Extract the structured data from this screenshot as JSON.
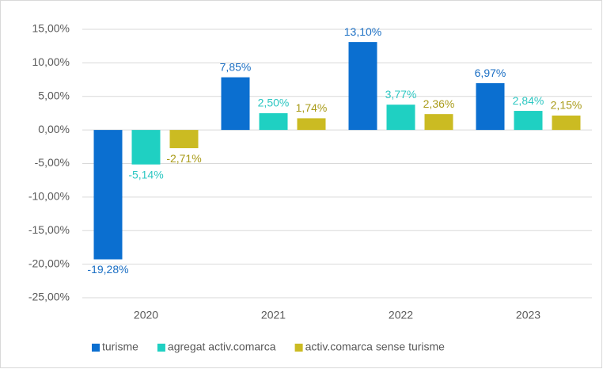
{
  "chart_data": {
    "type": "bar",
    "categories": [
      "2020",
      "2021",
      "2022",
      "2023"
    ],
    "series": [
      {
        "name": "turisme",
        "color": "#0b6fd0",
        "label_color": "#1b6fc4",
        "values": [
          -19.28,
          7.85,
          13.1,
          6.97
        ],
        "value_labels": [
          "-19,28%",
          "7,85%",
          "13,10%",
          "6,97%"
        ]
      },
      {
        "name": "agregat activ.comarca",
        "color": "#1fd0c2",
        "label_color": "#2cc7c2",
        "values": [
          -5.14,
          2.5,
          3.77,
          2.84
        ],
        "value_labels": [
          "-5,14%",
          "2,50%",
          "3,77%",
          "2,84%"
        ]
      },
      {
        "name": "activ.comarca sense turisme",
        "color": "#cbbb22",
        "label_color": "#a99b18",
        "values": [
          -2.71,
          1.74,
          2.36,
          2.15
        ],
        "value_labels": [
          "-2,71%",
          "1,74%",
          "2,36%",
          "2,15%"
        ]
      }
    ],
    "ylim": [
      -25,
      15
    ],
    "yticks": [
      {
        "value": -25,
        "label": "-25,00%"
      },
      {
        "value": -20,
        "label": "-20,00%"
      },
      {
        "value": -15,
        "label": "-15,00%"
      },
      {
        "value": -10,
        "label": "-10,00%"
      },
      {
        "value": -5,
        "label": "-5,00%"
      },
      {
        "value": 0,
        "label": "0,00%"
      },
      {
        "value": 5,
        "label": "5,00%"
      },
      {
        "value": 10,
        "label": "10,00%"
      },
      {
        "value": 15,
        "label": "15,00%"
      }
    ],
    "grid": true,
    "legend": "bottom"
  }
}
